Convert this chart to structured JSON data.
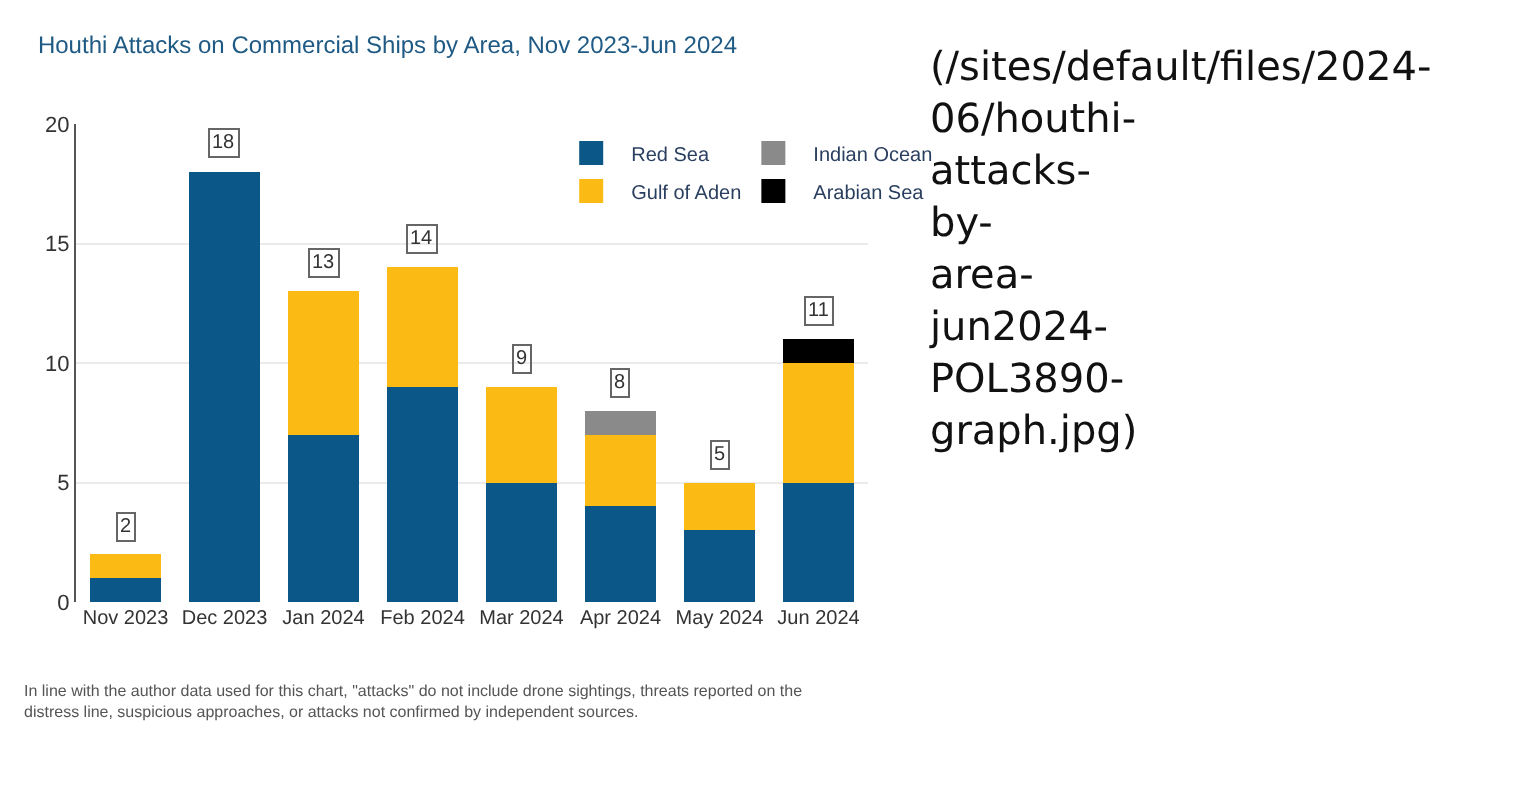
{
  "chart_data": {
    "type": "bar",
    "stacked": true,
    "title": "Houthi Attacks on Commercial Ships by Area, Nov 2023-Jun 2024",
    "categories": [
      "Nov 2023",
      "Dec 2023",
      "Jan 2024",
      "Feb 2024",
      "Mar 2024",
      "Apr 2024",
      "May 2024",
      "Jun 2024"
    ],
    "series": [
      {
        "name": "Red Sea",
        "color": "#0a5788",
        "values": [
          1,
          18,
          7,
          9,
          5,
          4,
          3,
          5
        ]
      },
      {
        "name": "Gulf of Aden",
        "color": "#fbbb14",
        "values": [
          1,
          null,
          6,
          5,
          4,
          3,
          2,
          5
        ]
      },
      {
        "name": "Indian Ocean",
        "color": "#8a8a8a",
        "values": [
          null,
          null,
          null,
          null,
          null,
          1,
          null,
          null
        ]
      },
      {
        "name": "Arabian Sea",
        "color": "#000000",
        "values": [
          null,
          null,
          null,
          null,
          null,
          null,
          null,
          1
        ]
      }
    ],
    "totals": [
      "2",
      "18",
      "13",
      "14",
      "9",
      "8",
      "5",
      "11"
    ],
    "ylim": [
      0,
      20
    ],
    "yticks": [
      0,
      5,
      10,
      15,
      20
    ],
    "grid": "y",
    "legend": "top right",
    "annotations": [
      "In line with the author data used for this chart, \"attacks\" do not include drone sightings, threats reported on the distress line, suspicious approaches, or attacks not confirmed by independent sources.",
      "(/sites/default/files/2024-06/houthi-attacks-by-area-jun2024-POL3890-graph.jpg)"
    ]
  }
}
